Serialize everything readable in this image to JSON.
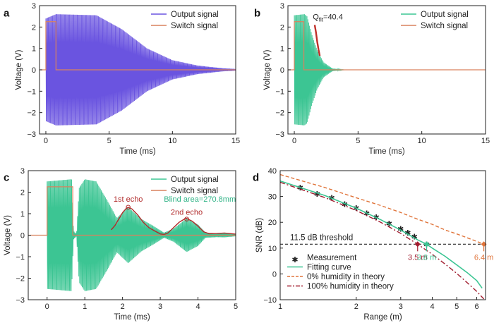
{
  "colors": {
    "purple": "#6a54e0",
    "green": "#3cc593",
    "orange_switch": "#d9825e",
    "red_fit": "#c0302a",
    "echo_red": "#b12a2a",
    "blind_green": "#2fb386",
    "orange_dash": "#e0743a",
    "darkred_dashdot": "#a11c2e",
    "axis": "#222222"
  },
  "chart_data": [
    {
      "id": "a",
      "panel_label": "a",
      "type": "line",
      "xlabel": "Time (ms)",
      "ylabel": "Voltage (V)",
      "xlim": [
        -0.5,
        15
      ],
      "ylim": [
        -3,
        3
      ],
      "xticks": [
        0,
        5,
        10,
        15
      ],
      "yticks": [
        -3,
        -2,
        -1,
        0,
        1,
        2,
        3
      ],
      "legend": {
        "position": "top-right",
        "entries": [
          "Output signal",
          "Switch signal"
        ]
      },
      "series": [
        {
          "name": "Output signal",
          "kind": "oscillation",
          "color_key": "purple",
          "envelope": [
            [
              0,
              2.4
            ],
            [
              0.8,
              2.6
            ],
            [
              4,
              2.55
            ],
            [
              6,
              1.9
            ],
            [
              8,
              1.0
            ],
            [
              10,
              0.45
            ],
            [
              12,
              0.2
            ],
            [
              14,
              0.07
            ],
            [
              15,
              0.04
            ]
          ]
        },
        {
          "name": "Switch signal",
          "kind": "pulse",
          "color_key": "orange_switch",
          "high": 2.25,
          "t_on": 0,
          "t_off": 0.8
        }
      ]
    },
    {
      "id": "b",
      "panel_label": "b",
      "type": "line",
      "xlabel": "Time (ms)",
      "ylabel": "Voltage (V)",
      "xlim": [
        -0.5,
        15
      ],
      "ylim": [
        -3,
        3
      ],
      "xticks": [
        0,
        5,
        10,
        15
      ],
      "yticks": [
        -3,
        -2,
        -1,
        0,
        1,
        2,
        3
      ],
      "legend": {
        "position": "top-right",
        "entries": [
          "Output signal",
          "Switch signal"
        ]
      },
      "annotation": {
        "text_main": "Q",
        "text_sub": "fit",
        "text_value": "=40.4",
        "at": [
          1.45,
          2.35
        ]
      },
      "series": [
        {
          "name": "Output signal",
          "kind": "oscillation",
          "color_key": "green",
          "envelope": [
            [
              0,
              2.55
            ],
            [
              0.8,
              2.6
            ],
            [
              1.0,
              2.5
            ],
            [
              1.4,
              1.6
            ],
            [
              1.8,
              0.9
            ],
            [
              2.3,
              0.35
            ],
            [
              3.0,
              0.06
            ],
            [
              4.0,
              0.0
            ],
            [
              15,
              0.0
            ]
          ]
        },
        {
          "name": "Fit",
          "kind": "fit",
          "color_key": "red_fit",
          "points": [
            [
              1.6,
              2.1
            ],
            [
              1.7,
              1.75
            ],
            [
              1.8,
              1.3
            ],
            [
              1.9,
              0.95
            ],
            [
              2.0,
              0.65
            ]
          ]
        },
        {
          "name": "Switch signal",
          "kind": "pulse",
          "color_key": "orange_switch",
          "high": 2.25,
          "t_on": 0,
          "t_off": 0.75
        }
      ]
    },
    {
      "id": "c",
      "panel_label": "c",
      "type": "line",
      "xlabel": "Time (ms)",
      "ylabel": "Voltage (V)",
      "xlim": [
        -0.5,
        5
      ],
      "ylim": [
        -3,
        3
      ],
      "xticks": [
        0,
        1,
        2,
        3,
        4,
        5
      ],
      "yticks": [
        -3,
        -2,
        -1,
        0,
        1,
        2,
        3
      ],
      "legend": {
        "position": "top-right",
        "entries": [
          "Output signal",
          "Switch signal"
        ]
      },
      "annotations": [
        {
          "text": "1st echo",
          "at": [
            2.15,
            1.55
          ],
          "color_key": "echo_red"
        },
        {
          "text": "Blind area=270.8mm",
          "at": [
            4.05,
            1.55
          ],
          "color_key": "blind_green"
        },
        {
          "text": "2nd echo",
          "at": [
            3.7,
            0.95
          ],
          "color_key": "echo_red"
        }
      ],
      "markers": [
        [
          2.15,
          1.3
        ],
        [
          3.7,
          0.75
        ]
      ],
      "series": [
        {
          "name": "Output signal",
          "kind": "oscillation",
          "color_key": "green",
          "envelope": [
            [
              0,
              2.5
            ],
            [
              0.65,
              2.6
            ],
            [
              0.7,
              0.2
            ],
            [
              0.78,
              0.05
            ],
            [
              0.85,
              2.2
            ],
            [
              1.0,
              2.6
            ],
            [
              1.3,
              2.5
            ],
            [
              1.6,
              1.6
            ],
            [
              1.85,
              0.8
            ],
            [
              2.15,
              1.3
            ],
            [
              2.5,
              0.75
            ],
            [
              2.8,
              0.45
            ],
            [
              3.1,
              0.12
            ],
            [
              3.35,
              0.3
            ],
            [
              3.7,
              0.78
            ],
            [
              4.0,
              0.5
            ],
            [
              4.2,
              0.12
            ],
            [
              4.5,
              0.09
            ],
            [
              4.7,
              0.1
            ],
            [
              5.0,
              0.05
            ]
          ]
        },
        {
          "name": "Echo envelope",
          "kind": "envelope",
          "color_key": "echo_red",
          "points": [
            [
              1.7,
              0.25
            ],
            [
              1.8,
              0.45
            ],
            [
              1.9,
              0.75
            ],
            [
              2.0,
              1.05
            ],
            [
              2.1,
              1.25
            ],
            [
              2.15,
              1.3
            ],
            [
              2.25,
              1.22
            ],
            [
              2.4,
              0.95
            ],
            [
              2.55,
              0.6
            ],
            [
              2.7,
              0.35
            ],
            [
              2.85,
              0.2
            ],
            [
              3.0,
              0.06
            ],
            [
              3.1,
              0.03
            ],
            [
              3.2,
              0.1
            ],
            [
              3.35,
              0.35
            ],
            [
              3.5,
              0.6
            ],
            [
              3.65,
              0.76
            ],
            [
              3.7,
              0.78
            ],
            [
              3.85,
              0.65
            ],
            [
              4.0,
              0.42
            ],
            [
              4.15,
              0.16
            ],
            [
              4.3,
              0.07
            ],
            [
              4.5,
              0.08
            ],
            [
              4.7,
              0.1
            ],
            [
              5.0,
              0.05
            ]
          ]
        },
        {
          "name": "Switch signal",
          "kind": "pulse",
          "color_key": "orange_switch",
          "high": 2.25,
          "t_on": 0,
          "t_off": 0.68
        }
      ]
    },
    {
      "id": "d",
      "panel_label": "d",
      "type": "line",
      "xscale": "log",
      "xlabel": "Range (m)",
      "ylabel": "SNR (dB)",
      "xlim": [
        1,
        6.5
      ],
      "ylim": [
        -10,
        40
      ],
      "xticks": [
        1,
        2,
        3,
        4,
        5,
        6
      ],
      "yticks": [
        -10,
        0,
        10,
        20,
        30,
        40
      ],
      "threshold": {
        "value": 11.5,
        "label": "11.5 dB threshold"
      },
      "legend": {
        "position": "bottom-left",
        "entries": [
          "Measurement",
          "Fitting curve",
          "0% humidity in theory",
          "100% humidity in theory"
        ]
      },
      "callouts": [
        {
          "text": "3.5 m",
          "x": 3.5,
          "color_key": "darkred_dashdot"
        },
        {
          "text": "3.8 m",
          "x": 3.8,
          "color_key": "green"
        },
        {
          "text": "6.4 m",
          "x": 6.4,
          "color_key": "orange_dash"
        }
      ],
      "series": [
        {
          "name": "Measurement",
          "kind": "markers",
          "color_key": "green",
          "x": [
            1.2,
            1.4,
            1.6,
            1.8,
            2.0,
            2.2,
            2.4,
            2.7,
            3.0,
            3.2,
            3.4,
            3.8
          ],
          "y": [
            33.5,
            31.0,
            29.5,
            27.0,
            25.5,
            23.5,
            22.0,
            19.5,
            17.5,
            16.0,
            14.5,
            11.5
          ]
        },
        {
          "name": "Fitting curve",
          "kind": "curve",
          "color_key": "green",
          "style": "solid",
          "x": [
            1.0,
            1.5,
            2.0,
            2.5,
            3.0,
            3.5,
            3.8,
            4.0,
            4.5,
            5.0,
            5.5,
            6.0,
            6.3
          ],
          "y": [
            36.0,
            30.4,
            25.5,
            21.0,
            17.0,
            13.2,
            11.5,
            10.0,
            6.8,
            3.5,
            0.5,
            -2.6,
            -5.5
          ]
        },
        {
          "name": "0% humidity in theory",
          "kind": "curve",
          "color_key": "orange_dash",
          "style": "dashed",
          "x": [
            1.0,
            1.5,
            2.0,
            2.5,
            3.0,
            3.5,
            4.0,
            4.5,
            5.0,
            5.5,
            6.0,
            6.4
          ],
          "y": [
            38.5,
            33.5,
            29.5,
            26.5,
            23.8,
            21.2,
            19.2,
            17.0,
            15.5,
            14.0,
            12.6,
            11.5
          ]
        },
        {
          "name": "100% humidity in theory",
          "kind": "curve",
          "color_key": "darkred_dashdot",
          "style": "dashdot",
          "x": [
            1.0,
            1.5,
            2.0,
            2.5,
            3.0,
            3.5,
            4.0,
            4.5,
            5.0,
            5.5,
            6.0,
            6.4
          ],
          "y": [
            35.5,
            29.6,
            24.6,
            20.0,
            15.7,
            11.5,
            7.6,
            3.8,
            0.2,
            -3.4,
            -6.8,
            -9.7
          ]
        }
      ]
    }
  ]
}
